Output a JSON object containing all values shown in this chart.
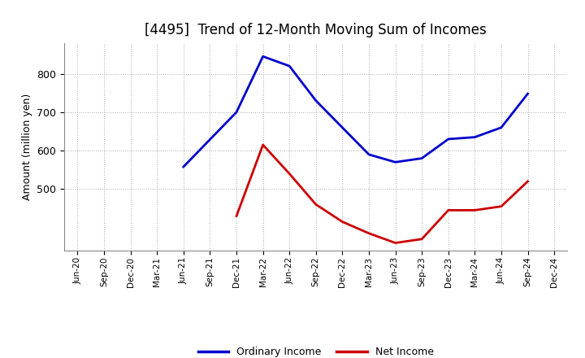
{
  "title": "[4495]  Trend of 12-Month Moving Sum of Incomes",
  "ylabel": "Amount (million yen)",
  "background_color": "#ffffff",
  "grid_color": "#aaaaaa",
  "x_labels": [
    "Jun-20",
    "Sep-20",
    "Dec-20",
    "Mar-21",
    "Jun-21",
    "Sep-21",
    "Dec-21",
    "Mar-22",
    "Jun-22",
    "Sep-22",
    "Dec-22",
    "Mar-23",
    "Jun-23",
    "Sep-23",
    "Dec-23",
    "Mar-24",
    "Jun-24",
    "Sep-24",
    "Dec-24"
  ],
  "ordinary_income": [
    null,
    null,
    null,
    null,
    558,
    null,
    700,
    845,
    820,
    730,
    660,
    590,
    570,
    580,
    630,
    635,
    660,
    748,
    null
  ],
  "net_income": [
    null,
    null,
    null,
    null,
    null,
    null,
    430,
    615,
    540,
    460,
    415,
    385,
    360,
    370,
    445,
    445,
    455,
    520,
    null
  ],
  "ordinary_color": "#0000cc",
  "net_color": "#cc0000",
  "ylim_min": 340,
  "ylim_max": 880,
  "yticks": [
    500,
    600,
    700,
    800
  ],
  "title_fontsize": 12,
  "legend_labels": [
    "Ordinary Income",
    "Net Income"
  ],
  "line_width": 2.0
}
